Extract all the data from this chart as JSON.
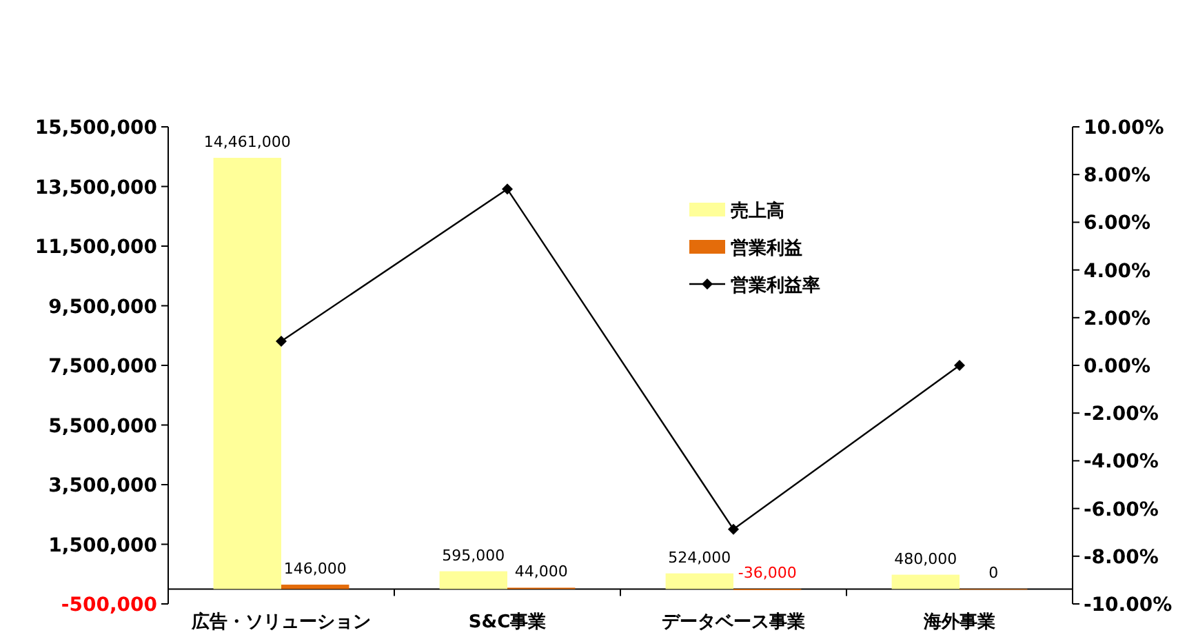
{
  "chart_data": {
    "type": "bar",
    "categories": [
      "広告・ソリューション",
      "S&C事業",
      "データベース事業",
      "海外事業"
    ],
    "series": [
      {
        "name": "売上高",
        "color": "#ffff99",
        "values": [
          14461000,
          595000,
          524000,
          480000
        ],
        "value_labels": [
          "14,461,000",
          "595,000",
          "524,000",
          "480,000"
        ]
      },
      {
        "name": "営業利益",
        "color": "#e46c0a",
        "values": [
          146000,
          44000,
          -36000,
          0
        ],
        "value_labels": [
          "146,000",
          "44,000",
          "-36,000",
          "0"
        ]
      },
      {
        "name": "営業利益率",
        "type": "line",
        "axis": "y2",
        "color": "#000000",
        "marker": "diamond",
        "values": [
          1.01,
          7.39,
          -6.87,
          0.0
        ]
      }
    ],
    "ylim": [
      -500000,
      15500000
    ],
    "yticks": [
      {
        "value": -500000,
        "label": "-500,000"
      },
      {
        "value": 1500000,
        "label": "1,500,000"
      },
      {
        "value": 3500000,
        "label": "3,500,000"
      },
      {
        "value": 5500000,
        "label": "5,500,000"
      },
      {
        "value": 7500000,
        "label": "7,500,000"
      },
      {
        "value": 9500000,
        "label": "9,500,000"
      },
      {
        "value": 11500000,
        "label": "11,500,000"
      },
      {
        "value": 13500000,
        "label": "13,500,000"
      },
      {
        "value": 15500000,
        "label": "15,500,000"
      }
    ],
    "y2lim": [
      -10,
      10
    ],
    "y2ticks": [
      {
        "value": -10,
        "label": "-10.00%"
      },
      {
        "value": -8,
        "label": "-8.00%"
      },
      {
        "value": -6,
        "label": "-6.00%"
      },
      {
        "value": -4,
        "label": "-4.00%"
      },
      {
        "value": -2,
        "label": "-2.00%"
      },
      {
        "value": 0,
        "label": "0.00%"
      },
      {
        "value": 2,
        "label": "2.00%"
      },
      {
        "value": 4,
        "label": "4.00%"
      },
      {
        "value": 6,
        "label": "6.00%"
      },
      {
        "value": 8,
        "label": "8.00%"
      },
      {
        "value": 10,
        "label": "10.00%"
      }
    ],
    "legend": "top right",
    "grid": false
  }
}
